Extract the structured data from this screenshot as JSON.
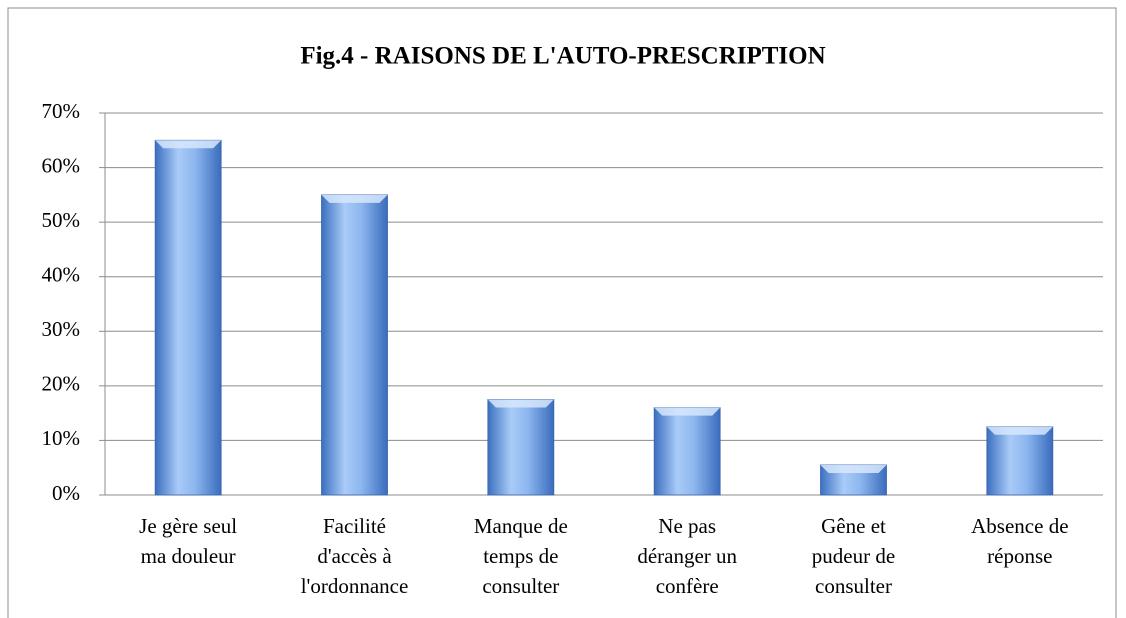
{
  "chart_data": {
    "type": "bar",
    "title": "Fig.4 - RAISONS DE L'AUTO-PRESCRIPTION",
    "categories": [
      [
        "Je gère seul",
        "ma douleur"
      ],
      [
        "Facilité",
        "d'accès à",
        "l'ordonnance"
      ],
      [
        "Manque de",
        "temps de",
        "consulter"
      ],
      [
        "Ne pas",
        "déranger un",
        "confère"
      ],
      [
        "Gêne et",
        "pudeur de",
        "consulter"
      ],
      [
        "Absence de",
        "réponse"
      ]
    ],
    "values": [
      65,
      55,
      17.5,
      16,
      5.5,
      12.5
    ],
    "color": "#5b8fd6",
    "ylim": [
      0,
      70
    ],
    "yticks": [
      {
        "value": 0,
        "label": "0%"
      },
      {
        "value": 10,
        "label": "10%"
      },
      {
        "value": 20,
        "label": "20%"
      },
      {
        "value": 30,
        "label": "30%"
      },
      {
        "value": 40,
        "label": "40%"
      },
      {
        "value": 50,
        "label": "50%"
      },
      {
        "value": 60,
        "label": "60%"
      },
      {
        "value": 70,
        "label": "70%"
      }
    ],
    "grid": true
  }
}
